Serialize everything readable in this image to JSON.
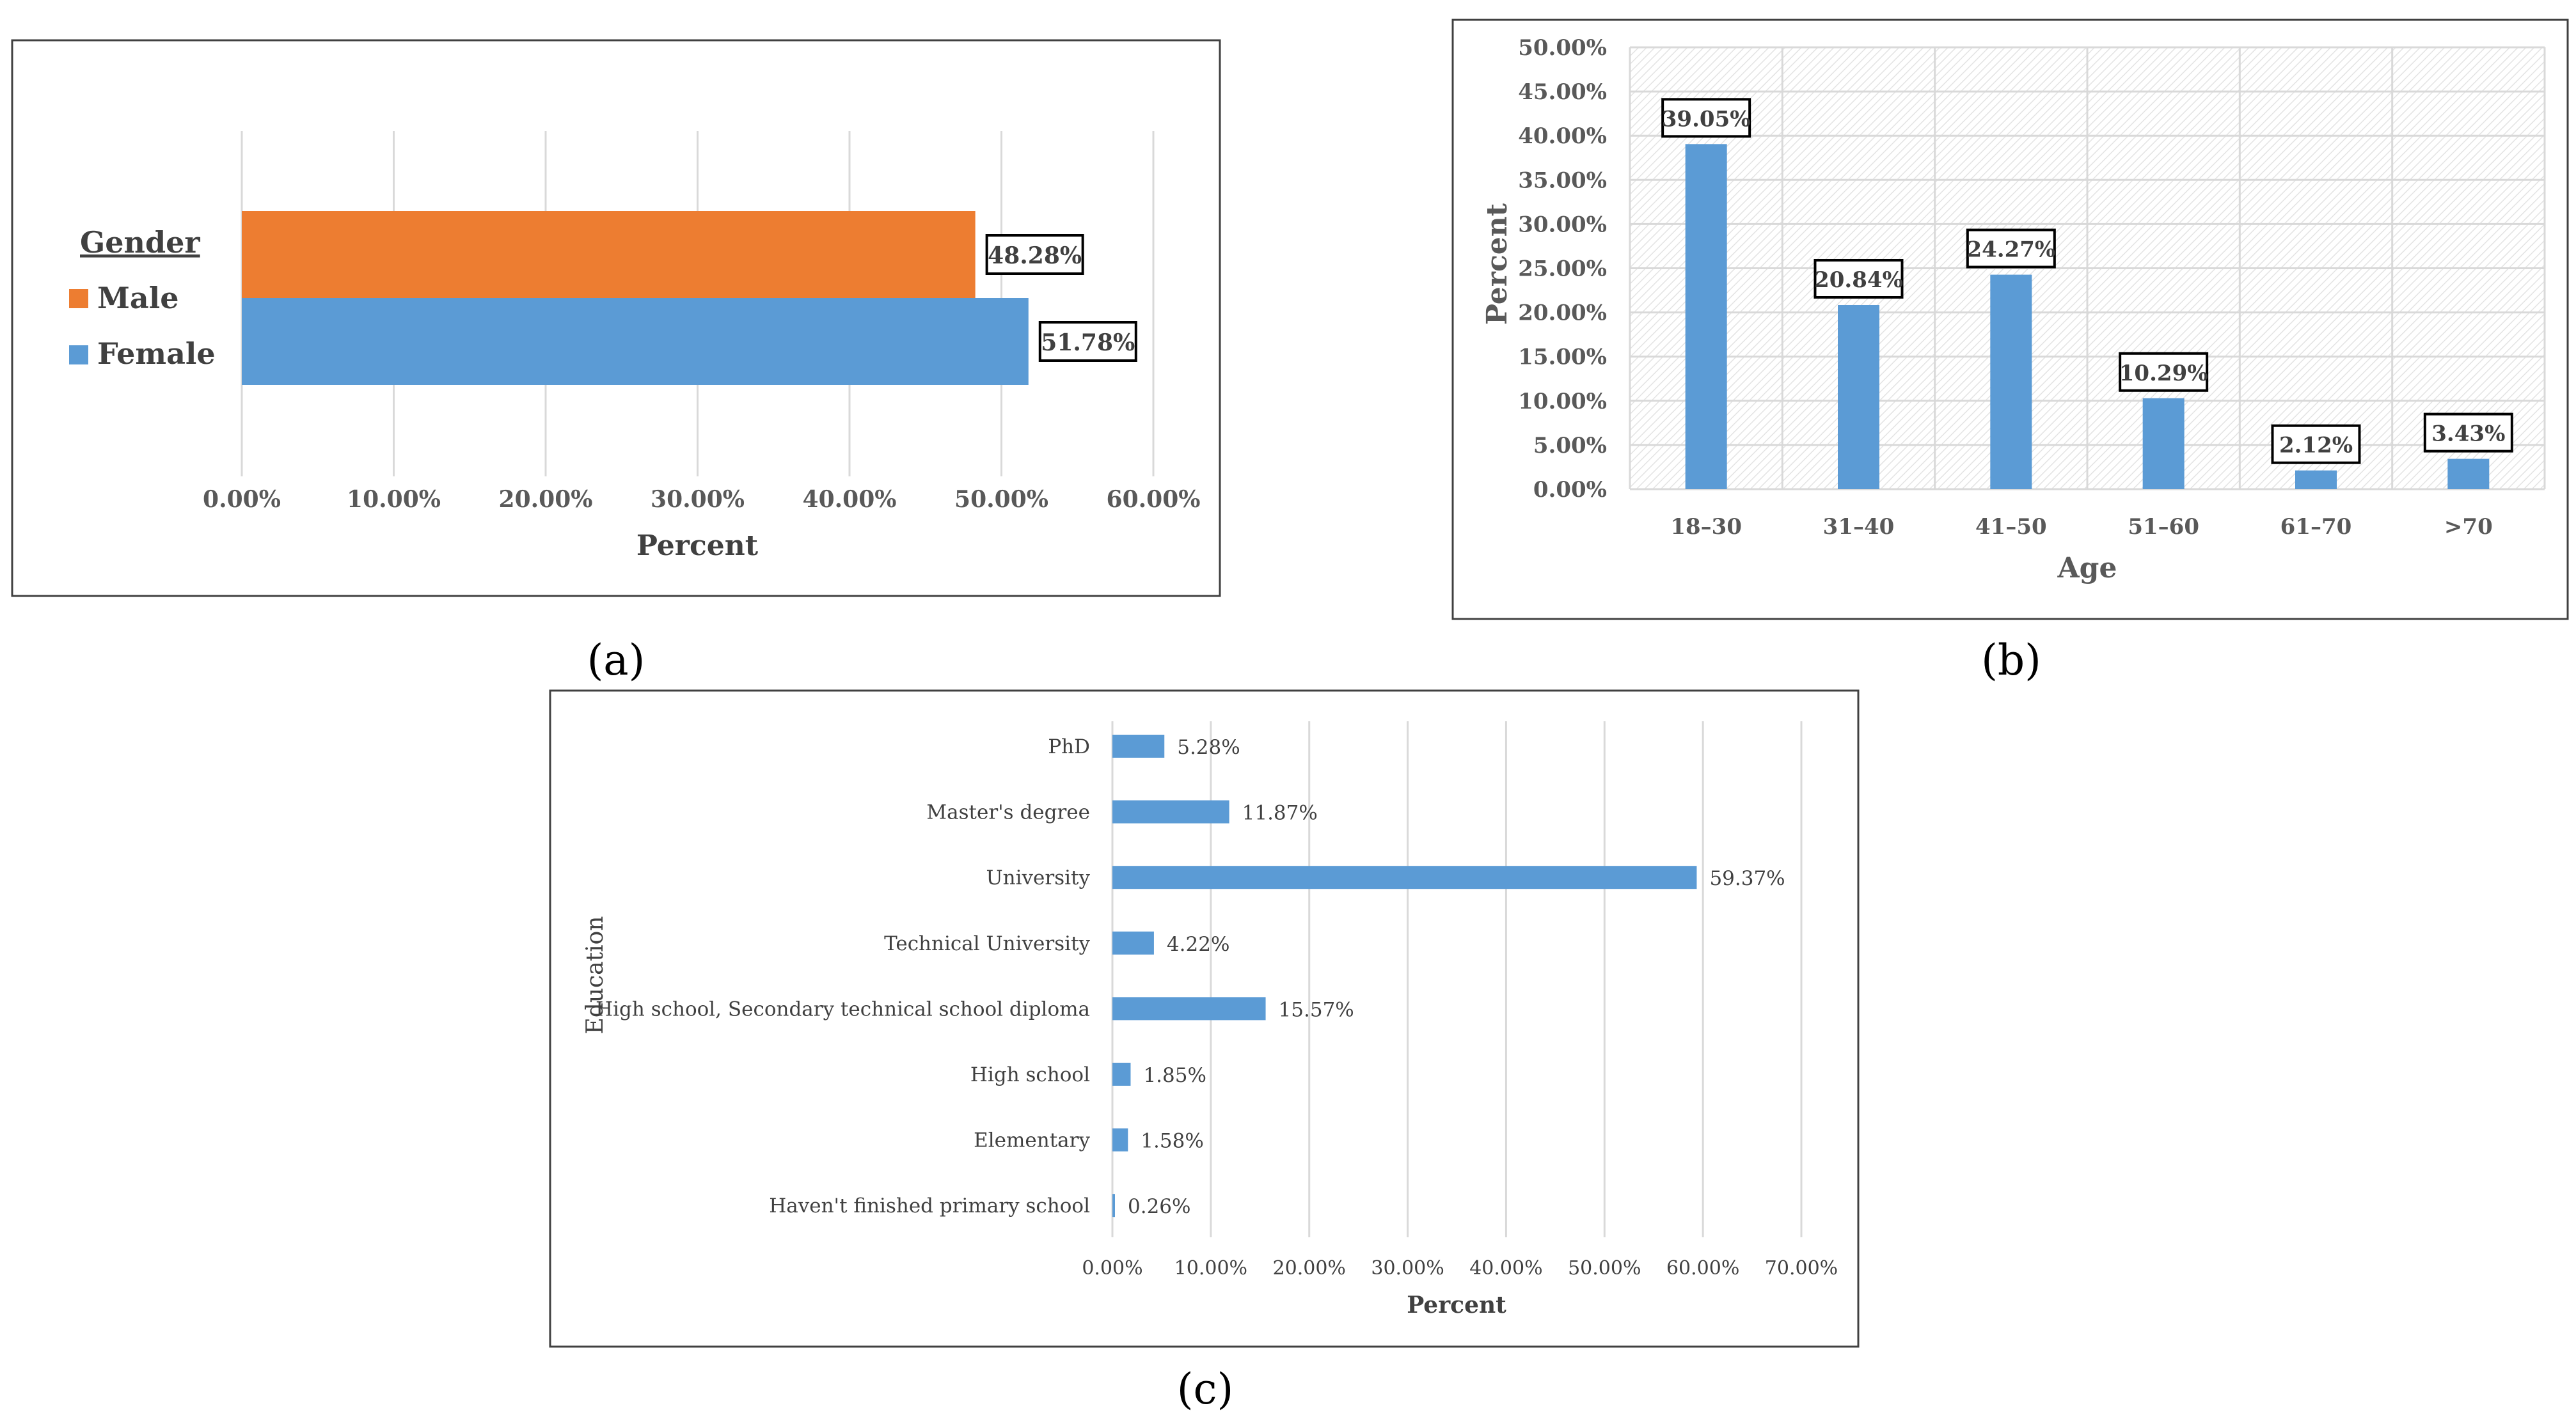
{
  "colors": {
    "blue": "#5b9bd5",
    "orange": "#ed7d31",
    "grid": "#d9d9d9",
    "axis_text": "#595959"
  },
  "panel_labels": {
    "a": "(a)",
    "b": "(b)",
    "c": "(c)"
  },
  "chart_data": [
    {
      "id": "a",
      "type": "bar",
      "orientation": "horizontal",
      "legend_title": "Gender",
      "categories": [
        "Male",
        "Female"
      ],
      "values": [
        48.28,
        51.78
      ],
      "value_labels": [
        "48.28%",
        "51.78%"
      ],
      "series_colors": [
        "#ed7d31",
        "#5b9bd5"
      ],
      "xlabel": "Percent",
      "ylabel": "",
      "xlim": [
        0,
        60
      ],
      "xticks": [
        "0.00%",
        "10.00%",
        "20.00%",
        "30.00%",
        "40.00%",
        "50.00%",
        "60.00%"
      ],
      "grid": true,
      "legend": "left"
    },
    {
      "id": "b",
      "type": "bar",
      "orientation": "vertical",
      "categories": [
        "18–30",
        "31–40",
        "41–50",
        "51–60",
        "61–70",
        ">70"
      ],
      "values": [
        39.05,
        20.84,
        24.27,
        10.29,
        2.12,
        3.43
      ],
      "value_labels": [
        "39.05%",
        "20.84%",
        "24.27%",
        "10.29%",
        "2.12%",
        "3.43%"
      ],
      "xlabel": "Age",
      "ylabel": "Percent",
      "ylim": [
        0,
        50
      ],
      "yticks": [
        "0.00%",
        "5.00%",
        "10.00%",
        "15.00%",
        "20.00%",
        "25.00%",
        "30.00%",
        "35.00%",
        "40.00%",
        "45.00%",
        "50.00%"
      ],
      "grid": true
    },
    {
      "id": "c",
      "type": "bar",
      "orientation": "horizontal",
      "categories": [
        "PhD",
        "Master's degree",
        "University",
        "Technical University",
        "High school, Secondary technical school diploma",
        "High school",
        "Elementary",
        "Haven't finished primary school"
      ],
      "values": [
        5.28,
        11.87,
        59.37,
        4.22,
        15.57,
        1.85,
        1.58,
        0.26
      ],
      "value_labels": [
        "5.28%",
        "11.87%",
        "59.37%",
        "4.22%",
        "15.57%",
        "1.85%",
        "1.58%",
        "0.26%"
      ],
      "xlabel": "Percent",
      "ylabel": "Education",
      "xlim": [
        0,
        70
      ],
      "xticks": [
        "0.00%",
        "10.00%",
        "20.00%",
        "30.00%",
        "40.00%",
        "50.00%",
        "60.00%",
        "70.00%"
      ],
      "grid": true
    }
  ]
}
